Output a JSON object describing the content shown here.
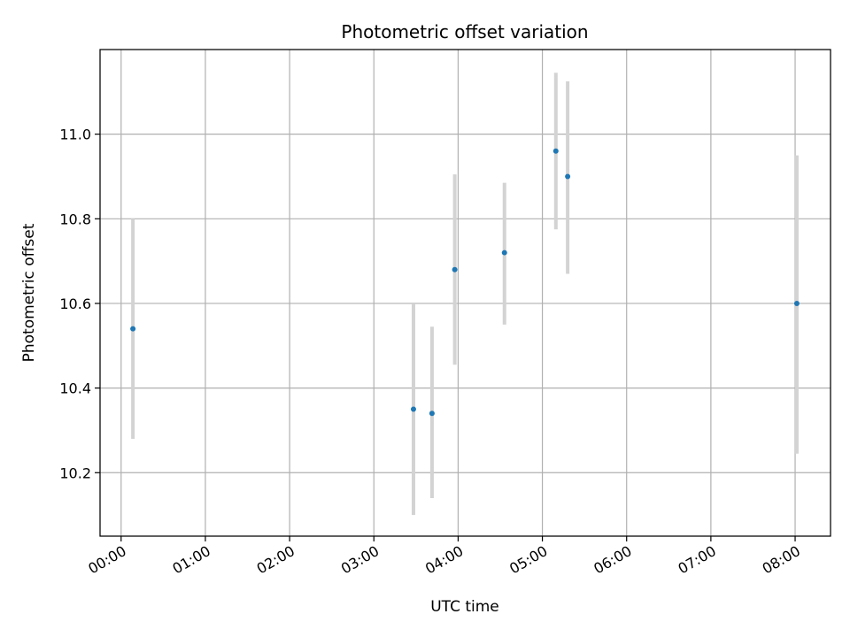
{
  "chart_data": {
    "type": "scatter",
    "title": "Photometric offset variation",
    "xlabel": "UTC time",
    "ylabel": "Photometric offset",
    "x_unit": "hours UTC",
    "xlim": [
      -0.25,
      8.42
    ],
    "ylim": [
      10.05,
      11.2
    ],
    "grid": true,
    "x_ticks": [
      0,
      1,
      2,
      3,
      4,
      5,
      6,
      7,
      8
    ],
    "x_tick_labels": [
      "00:00",
      "01:00",
      "02:00",
      "03:00",
      "04:00",
      "05:00",
      "06:00",
      "07:00",
      "08:00"
    ],
    "y_ticks": [
      10.2,
      10.4,
      10.6,
      10.8,
      11.0
    ],
    "y_tick_labels": [
      "10.2",
      "10.4",
      "10.6",
      "10.8",
      "11.0"
    ],
    "points": [
      {
        "x": 0.14,
        "y": 10.54,
        "err_low": 10.28,
        "err_high": 10.8
      },
      {
        "x": 3.47,
        "y": 10.35,
        "err_low": 10.1,
        "err_high": 10.6
      },
      {
        "x": 3.69,
        "y": 10.34,
        "err_low": 10.14,
        "err_high": 10.545
      },
      {
        "x": 3.96,
        "y": 10.68,
        "err_low": 10.455,
        "err_high": 10.905
      },
      {
        "x": 4.55,
        "y": 10.72,
        "err_low": 10.55,
        "err_high": 10.885
      },
      {
        "x": 5.16,
        "y": 10.96,
        "err_low": 10.775,
        "err_high": 11.145
      },
      {
        "x": 5.3,
        "y": 10.9,
        "err_low": 10.67,
        "err_high": 11.125
      },
      {
        "x": 8.02,
        "y": 10.6,
        "err_low": 10.245,
        "err_high": 10.95
      }
    ],
    "colors": {
      "point": "#1f77b4",
      "errorbar": "#d3d3d3",
      "grid": "#b0b0b0",
      "axes": "#000000"
    }
  }
}
